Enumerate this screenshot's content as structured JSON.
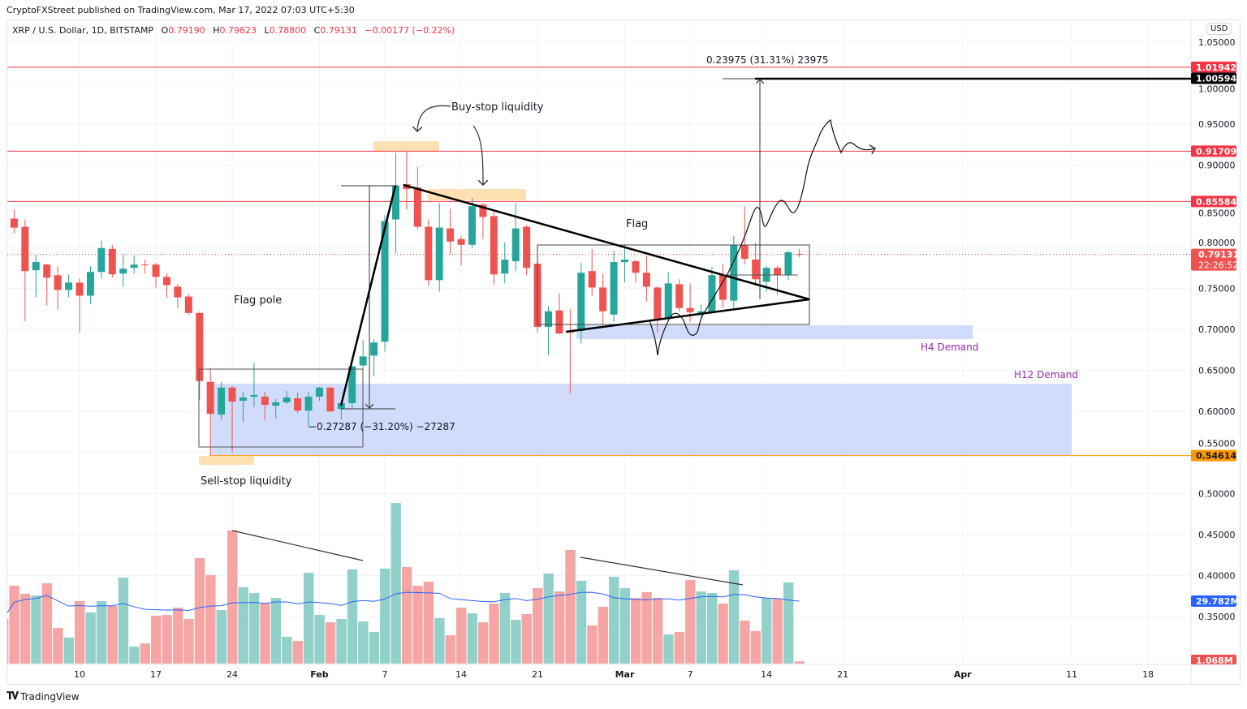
{
  "publish_line": "CryptoFXStreet published on TradingView.com, Mar 17, 2022 07:03 UTC+5:30",
  "legend": {
    "symbol": "XRP / U.S. Dollar, 1D, BITSTAMP",
    "o_label": "O",
    "o": "0.79190",
    "h_label": "H",
    "h": "0.79823",
    "l_label": "L",
    "l": "0.78800",
    "c_label": "C",
    "c": "0.79131",
    "change": "−0.00177 (−0.22%)"
  },
  "currency": "USD",
  "brand": "TradingView",
  "colors": {
    "up": "#26a69a",
    "down": "#ef5350",
    "vol_up": "#92d1c9",
    "vol_down": "#f5a5a4",
    "level_red": "#f23645",
    "level_orange": "#ff9800",
    "demand": "#c9d6fb",
    "liquidity": "#ffe0b2",
    "ma": "#2962ff",
    "purple": "#9c27b0"
  },
  "chart_data": {
    "type": "candlestick",
    "price_axis": {
      "min": 0.3,
      "max": 1.05,
      "ticks": [
        "1.05000",
        "1.00000",
        "0.95000",
        "0.90000",
        "0.85000",
        "0.80000",
        "0.75000",
        "0.70000",
        "0.65000",
        "0.60000",
        "0.55000",
        "0.50000",
        "0.45000",
        "0.40000",
        "0.35000"
      ]
    },
    "x_ticks": [
      {
        "label": "10",
        "date": "2022-01-10",
        "bold": false
      },
      {
        "label": "17",
        "date": "2022-01-17",
        "bold": false
      },
      {
        "label": "24",
        "date": "2022-01-24",
        "bold": false
      },
      {
        "label": "Feb",
        "date": "2022-02-01",
        "bold": true
      },
      {
        "label": "7",
        "date": "2022-02-07",
        "bold": false
      },
      {
        "label": "14",
        "date": "2022-02-14",
        "bold": false
      },
      {
        "label": "21",
        "date": "2022-02-21",
        "bold": false
      },
      {
        "label": "Mar",
        "date": "2022-03-01",
        "bold": true
      },
      {
        "label": "7",
        "date": "2022-03-07",
        "bold": false
      },
      {
        "label": "14",
        "date": "2022-03-14",
        "bold": false
      },
      {
        "label": "21",
        "date": "2022-03-21",
        "bold": false
      },
      {
        "label": "Apr",
        "date": "2022-04-01",
        "bold": true
      },
      {
        "label": "11",
        "date": "2022-04-11",
        "bold": false
      },
      {
        "label": "18",
        "date": "2022-04-18",
        "bold": false
      }
    ],
    "columns": [
      "date",
      "open",
      "high",
      "low",
      "close",
      "volume_M"
    ],
    "candles": [
      [
        "2022-01-03",
        0.849,
        0.859,
        0.832,
        0.834,
        21.3
      ],
      [
        "2022-01-04",
        0.835,
        0.846,
        0.817,
        0.824,
        37.1
      ],
      [
        "2022-01-05",
        0.825,
        0.834,
        0.71,
        0.771,
        33.3
      ],
      [
        "2022-01-06",
        0.772,
        0.791,
        0.739,
        0.782,
        32.5
      ],
      [
        "2022-01-07",
        0.779,
        0.78,
        0.729,
        0.763,
        38.3
      ],
      [
        "2022-01-08",
        0.766,
        0.777,
        0.724,
        0.748,
        17.0
      ],
      [
        "2022-01-09",
        0.748,
        0.767,
        0.739,
        0.757,
        12.4
      ],
      [
        "2022-01-10",
        0.757,
        0.762,
        0.696,
        0.741,
        29.8
      ],
      [
        "2022-01-11",
        0.741,
        0.777,
        0.731,
        0.77,
        24.4
      ],
      [
        "2022-01-12",
        0.77,
        0.808,
        0.762,
        0.799,
        29.8
      ],
      [
        "2022-01-13",
        0.798,
        0.803,
        0.763,
        0.767,
        27.5
      ],
      [
        "2022-01-14",
        0.768,
        0.791,
        0.752,
        0.774,
        41.0
      ],
      [
        "2022-01-15",
        0.775,
        0.79,
        0.768,
        0.779,
        8.1
      ],
      [
        "2022-01-16",
        0.779,
        0.785,
        0.768,
        0.778,
        9.7
      ],
      [
        "2022-01-17",
        0.779,
        0.781,
        0.751,
        0.764,
        22.8
      ],
      [
        "2022-01-18",
        0.764,
        0.768,
        0.738,
        0.754,
        23.2
      ],
      [
        "2022-01-19",
        0.752,
        0.755,
        0.726,
        0.739,
        26.7
      ],
      [
        "2022-01-20",
        0.74,
        0.743,
        0.718,
        0.72,
        21.3
      ],
      [
        "2022-01-21",
        0.72,
        0.722,
        0.614,
        0.637,
        50.3
      ],
      [
        "2022-01-22",
        0.636,
        0.653,
        0.546,
        0.597,
        42.2
      ],
      [
        "2022-01-23",
        0.596,
        0.636,
        0.59,
        0.629,
        25.5
      ],
      [
        "2022-01-24",
        0.629,
        0.631,
        0.55,
        0.612,
        63.5
      ],
      [
        "2022-01-25",
        0.613,
        0.624,
        0.587,
        0.617,
        36.4
      ],
      [
        "2022-01-26",
        0.618,
        0.659,
        0.605,
        0.62,
        33.7
      ],
      [
        "2022-01-27",
        0.618,
        0.624,
        0.589,
        0.608,
        28.6
      ],
      [
        "2022-01-28",
        0.607,
        0.615,
        0.591,
        0.611,
        31.3
      ],
      [
        "2022-01-29",
        0.611,
        0.625,
        0.609,
        0.617,
        12.8
      ],
      [
        "2022-01-30",
        0.616,
        0.623,
        0.598,
        0.601,
        10.8
      ],
      [
        "2022-01-31",
        0.601,
        0.624,
        0.58,
        0.618,
        43.3
      ],
      [
        "2022-02-01",
        0.618,
        0.63,
        0.613,
        0.629,
        23.2
      ],
      [
        "2022-02-02",
        0.629,
        0.63,
        0.599,
        0.6,
        19.7
      ],
      [
        "2022-02-03",
        0.603,
        0.612,
        0.59,
        0.61,
        21.3
      ],
      [
        "2022-02-04",
        0.61,
        0.655,
        0.604,
        0.655,
        44.9
      ],
      [
        "2022-02-05",
        0.656,
        0.687,
        0.651,
        0.667,
        20.1
      ],
      [
        "2022-02-06",
        0.668,
        0.688,
        0.643,
        0.684,
        15.1
      ],
      [
        "2022-02-07",
        0.685,
        0.839,
        0.673,
        0.832,
        45.3
      ],
      [
        "2022-02-08",
        0.834,
        0.915,
        0.793,
        0.875,
        76.6
      ],
      [
        "2022-02-09",
        0.877,
        0.916,
        0.846,
        0.871,
        46.1
      ],
      [
        "2022-02-10",
        0.873,
        0.898,
        0.822,
        0.825,
        37.1
      ],
      [
        "2022-02-11",
        0.825,
        0.834,
        0.753,
        0.76,
        39.1
      ],
      [
        "2022-02-12",
        0.76,
        0.854,
        0.746,
        0.824,
        21.7
      ],
      [
        "2022-02-13",
        0.823,
        0.847,
        0.792,
        0.807,
        13.5
      ],
      [
        "2022-02-14",
        0.81,
        0.814,
        0.778,
        0.803,
        26.7
      ],
      [
        "2022-02-15",
        0.803,
        0.86,
        0.799,
        0.85,
        24.0
      ],
      [
        "2022-02-16",
        0.852,
        0.854,
        0.81,
        0.837,
        19.7
      ],
      [
        "2022-02-17",
        0.838,
        0.845,
        0.754,
        0.767,
        28.6
      ],
      [
        "2022-02-18",
        0.768,
        0.806,
        0.756,
        0.785,
        33.7
      ],
      [
        "2022-02-19",
        0.783,
        0.854,
        0.771,
        0.823,
        20.9
      ],
      [
        "2022-02-20",
        0.825,
        0.827,
        0.766,
        0.775,
        23.6
      ],
      [
        "2022-02-21",
        0.78,
        0.803,
        0.696,
        0.703,
        36.0
      ],
      [
        "2022-02-22",
        0.703,
        0.728,
        0.669,
        0.722,
        43.0
      ],
      [
        "2022-02-23",
        0.723,
        0.744,
        0.694,
        0.695,
        34.4
      ],
      [
        "2022-02-24",
        0.698,
        0.725,
        0.622,
        0.696,
        54.2
      ],
      [
        "2022-02-25",
        0.698,
        0.781,
        0.683,
        0.769,
        39.5
      ],
      [
        "2022-02-26",
        0.771,
        0.798,
        0.741,
        0.751,
        18.2
      ],
      [
        "2022-02-27",
        0.751,
        0.768,
        0.705,
        0.722,
        27.1
      ],
      [
        "2022-02-28",
        0.718,
        0.796,
        0.709,
        0.782,
        41.4
      ],
      [
        "2022-03-01",
        0.782,
        0.804,
        0.757,
        0.785,
        36.0
      ],
      [
        "2022-03-02",
        0.783,
        0.785,
        0.757,
        0.769,
        31.3
      ],
      [
        "2022-03-03",
        0.769,
        0.79,
        0.734,
        0.752,
        34.1
      ],
      [
        "2022-03-04",
        0.751,
        0.753,
        0.696,
        0.712,
        31.3
      ],
      [
        "2022-03-05",
        0.713,
        0.77,
        0.712,
        0.756,
        13.9
      ],
      [
        "2022-03-06",
        0.755,
        0.761,
        0.722,
        0.726,
        15.1
      ],
      [
        "2022-03-07",
        0.726,
        0.756,
        0.709,
        0.721,
        39.9
      ],
      [
        "2022-03-08",
        0.72,
        0.73,
        0.715,
        0.722,
        34.4
      ],
      [
        "2022-03-09",
        0.72,
        0.776,
        0.719,
        0.766,
        33.7
      ],
      [
        "2022-03-10",
        0.766,
        0.78,
        0.726,
        0.736,
        28.6
      ],
      [
        "2022-03-11",
        0.735,
        0.814,
        0.726,
        0.803,
        44.5
      ],
      [
        "2022-03-12",
        0.803,
        0.85,
        0.779,
        0.786,
        20.5
      ],
      [
        "2022-03-13",
        0.785,
        0.805,
        0.753,
        0.761,
        15.5
      ],
      [
        "2022-03-14",
        0.758,
        0.777,
        0.746,
        0.775,
        31.3
      ],
      [
        "2022-03-15",
        0.775,
        0.777,
        0.742,
        0.766,
        31.0
      ],
      [
        "2022-03-16",
        0.766,
        0.796,
        0.76,
        0.794,
        38.7
      ],
      [
        "2022-03-17",
        0.7919,
        0.79823,
        0.788,
        0.79131,
        1.068
      ]
    ],
    "volume_ma_label": "29.782M",
    "last_volume_label": "1.068M"
  },
  "levels": [
    {
      "price": 1.01942,
      "label": "1.01942",
      "style": "red"
    },
    {
      "price": 1.00594,
      "label": "1.00594",
      "style": "black"
    },
    {
      "price": 0.91709,
      "label": "0.91709",
      "style": "red"
    },
    {
      "price": 0.85584,
      "label": "0.85584",
      "style": "red"
    },
    {
      "price": 0.54614,
      "label": "0.54614",
      "style": "orange"
    }
  ],
  "last_price": {
    "label": "0.79131",
    "countdown": "22:26:52"
  },
  "annotations": {
    "flag_pole": "Flag pole",
    "flag": "Flag",
    "buy_stop": "Buy-stop liquidity",
    "sell_stop": "Sell-stop liquidity",
    "h4_demand": "H4 Demand",
    "h12_demand": "H12 Demand",
    "pole_measure": "−0.27287 (−31.20%) −27287",
    "target_measure": "0.23975 (31.31%) 23975"
  }
}
